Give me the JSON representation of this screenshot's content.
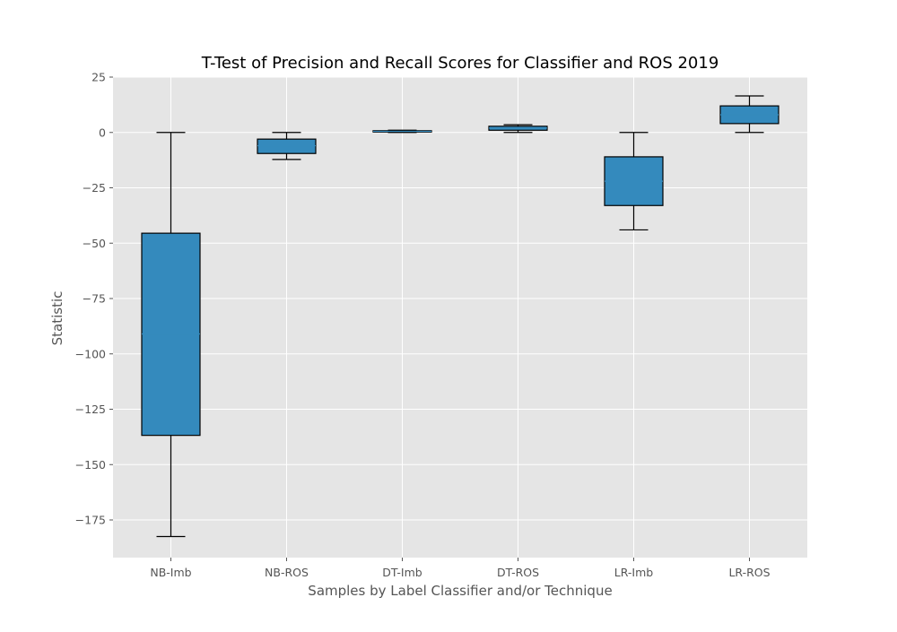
{
  "colors": {
    "plot_background": "#e5e5e5",
    "grid": "#ffffff",
    "box_fill": "#348abd",
    "box_edge": "#000000",
    "median": "#348abd",
    "tick": "#555555",
    "text": "#555555",
    "title": "#000000"
  },
  "chart_data": {
    "type": "box",
    "title": "T-Test of Precision and Recall Scores for Classifier and ROS 2019",
    "xlabel": "Samples by Label Classifier and/or Technique",
    "ylabel": "Statistic",
    "ylim": [
      -192,
      25
    ],
    "yticks": [
      25,
      0,
      -25,
      -50,
      -75,
      -100,
      -125,
      -150,
      -175
    ],
    "ytick_labels": [
      "25",
      "0",
      "−25",
      "−50",
      "−75",
      "−100",
      "−125",
      "−150",
      "−175"
    ],
    "grid": true,
    "style": "ggplot",
    "categories": [
      "NB-Imb",
      "NB-ROS",
      "DT-Imb",
      "DT-ROS",
      "LR-Imb",
      "LR-ROS"
    ],
    "boxes": [
      {
        "label": "NB-Imb",
        "whisker_low": -182.5,
        "q1": -136.8,
        "median": -91,
        "q3": -45.5,
        "whisker_high": 0
      },
      {
        "label": "NB-ROS",
        "whisker_low": -12.2,
        "q1": -9.5,
        "median": -6,
        "q3": -3,
        "whisker_high": 0
      },
      {
        "label": "DT-Imb",
        "whisker_low": 0,
        "q1": 0.2,
        "median": 0.5,
        "q3": 0.8,
        "whisker_high": 1
      },
      {
        "label": "DT-ROS",
        "whisker_low": 0,
        "q1": 1,
        "median": 2,
        "q3": 2.8,
        "whisker_high": 3.5
      },
      {
        "label": "LR-Imb",
        "whisker_low": -44,
        "q1": -33,
        "median": -22,
        "q3": -11,
        "whisker_high": 0
      },
      {
        "label": "LR-ROS",
        "whisker_low": 0,
        "q1": 4,
        "median": 8,
        "q3": 12,
        "whisker_high": 16.5
      }
    ]
  }
}
